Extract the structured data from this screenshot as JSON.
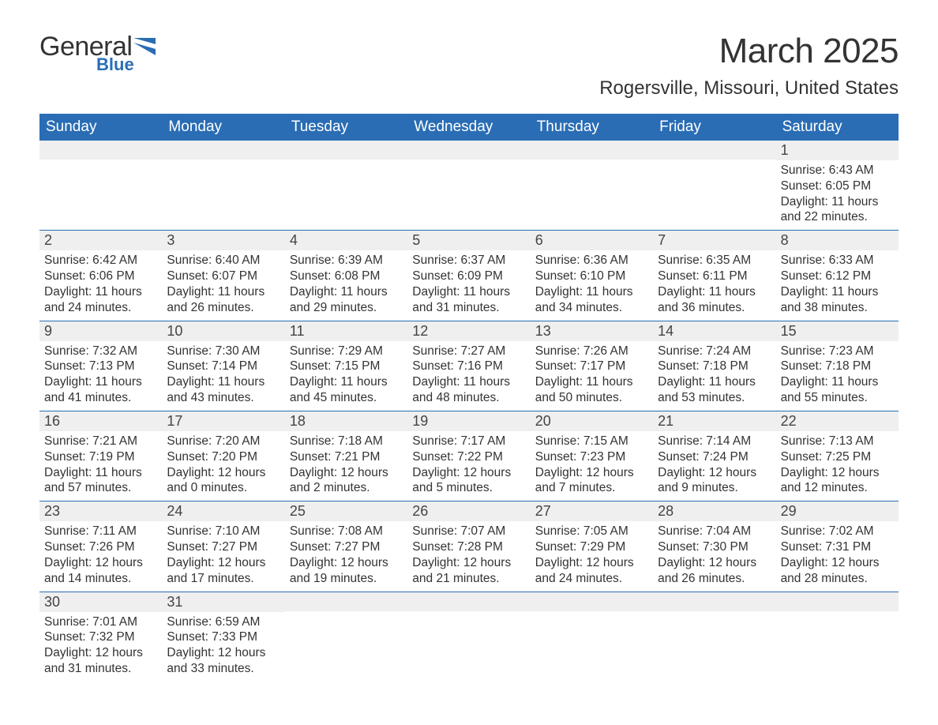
{
  "logo": {
    "main": "General",
    "sub": "Blue"
  },
  "title": "March 2025",
  "location": "Rogersville, Missouri, United States",
  "colors": {
    "header_bg": "#2a6db4",
    "header_text": "#ffffff",
    "strip_bg": "#efefef",
    "border": "#2a6db4",
    "text": "#333333"
  },
  "typography": {
    "title_fontsize": 44,
    "location_fontsize": 24,
    "dayheader_fontsize": 19,
    "daynum_fontsize": 18,
    "body_fontsize": 15.5
  },
  "layout": {
    "columns": 7,
    "rows": 6
  },
  "day_headers": [
    "Sunday",
    "Monday",
    "Tuesday",
    "Wednesday",
    "Thursday",
    "Friday",
    "Saturday"
  ],
  "weeks": [
    [
      {
        "num": "",
        "sunrise": "",
        "sunset": "",
        "daylight": ""
      },
      {
        "num": "",
        "sunrise": "",
        "sunset": "",
        "daylight": ""
      },
      {
        "num": "",
        "sunrise": "",
        "sunset": "",
        "daylight": ""
      },
      {
        "num": "",
        "sunrise": "",
        "sunset": "",
        "daylight": ""
      },
      {
        "num": "",
        "sunrise": "",
        "sunset": "",
        "daylight": ""
      },
      {
        "num": "",
        "sunrise": "",
        "sunset": "",
        "daylight": ""
      },
      {
        "num": "1",
        "sunrise": "Sunrise: 6:43 AM",
        "sunset": "Sunset: 6:05 PM",
        "daylight": "Daylight: 11 hours and 22 minutes."
      }
    ],
    [
      {
        "num": "2",
        "sunrise": "Sunrise: 6:42 AM",
        "sunset": "Sunset: 6:06 PM",
        "daylight": "Daylight: 11 hours and 24 minutes."
      },
      {
        "num": "3",
        "sunrise": "Sunrise: 6:40 AM",
        "sunset": "Sunset: 6:07 PM",
        "daylight": "Daylight: 11 hours and 26 minutes."
      },
      {
        "num": "4",
        "sunrise": "Sunrise: 6:39 AM",
        "sunset": "Sunset: 6:08 PM",
        "daylight": "Daylight: 11 hours and 29 minutes."
      },
      {
        "num": "5",
        "sunrise": "Sunrise: 6:37 AM",
        "sunset": "Sunset: 6:09 PM",
        "daylight": "Daylight: 11 hours and 31 minutes."
      },
      {
        "num": "6",
        "sunrise": "Sunrise: 6:36 AM",
        "sunset": "Sunset: 6:10 PM",
        "daylight": "Daylight: 11 hours and 34 minutes."
      },
      {
        "num": "7",
        "sunrise": "Sunrise: 6:35 AM",
        "sunset": "Sunset: 6:11 PM",
        "daylight": "Daylight: 11 hours and 36 minutes."
      },
      {
        "num": "8",
        "sunrise": "Sunrise: 6:33 AM",
        "sunset": "Sunset: 6:12 PM",
        "daylight": "Daylight: 11 hours and 38 minutes."
      }
    ],
    [
      {
        "num": "9",
        "sunrise": "Sunrise: 7:32 AM",
        "sunset": "Sunset: 7:13 PM",
        "daylight": "Daylight: 11 hours and 41 minutes."
      },
      {
        "num": "10",
        "sunrise": "Sunrise: 7:30 AM",
        "sunset": "Sunset: 7:14 PM",
        "daylight": "Daylight: 11 hours and 43 minutes."
      },
      {
        "num": "11",
        "sunrise": "Sunrise: 7:29 AM",
        "sunset": "Sunset: 7:15 PM",
        "daylight": "Daylight: 11 hours and 45 minutes."
      },
      {
        "num": "12",
        "sunrise": "Sunrise: 7:27 AM",
        "sunset": "Sunset: 7:16 PM",
        "daylight": "Daylight: 11 hours and 48 minutes."
      },
      {
        "num": "13",
        "sunrise": "Sunrise: 7:26 AM",
        "sunset": "Sunset: 7:17 PM",
        "daylight": "Daylight: 11 hours and 50 minutes."
      },
      {
        "num": "14",
        "sunrise": "Sunrise: 7:24 AM",
        "sunset": "Sunset: 7:18 PM",
        "daylight": "Daylight: 11 hours and 53 minutes."
      },
      {
        "num": "15",
        "sunrise": "Sunrise: 7:23 AM",
        "sunset": "Sunset: 7:18 PM",
        "daylight": "Daylight: 11 hours and 55 minutes."
      }
    ],
    [
      {
        "num": "16",
        "sunrise": "Sunrise: 7:21 AM",
        "sunset": "Sunset: 7:19 PM",
        "daylight": "Daylight: 11 hours and 57 minutes."
      },
      {
        "num": "17",
        "sunrise": "Sunrise: 7:20 AM",
        "sunset": "Sunset: 7:20 PM",
        "daylight": "Daylight: 12 hours and 0 minutes."
      },
      {
        "num": "18",
        "sunrise": "Sunrise: 7:18 AM",
        "sunset": "Sunset: 7:21 PM",
        "daylight": "Daylight: 12 hours and 2 minutes."
      },
      {
        "num": "19",
        "sunrise": "Sunrise: 7:17 AM",
        "sunset": "Sunset: 7:22 PM",
        "daylight": "Daylight: 12 hours and 5 minutes."
      },
      {
        "num": "20",
        "sunrise": "Sunrise: 7:15 AM",
        "sunset": "Sunset: 7:23 PM",
        "daylight": "Daylight: 12 hours and 7 minutes."
      },
      {
        "num": "21",
        "sunrise": "Sunrise: 7:14 AM",
        "sunset": "Sunset: 7:24 PM",
        "daylight": "Daylight: 12 hours and 9 minutes."
      },
      {
        "num": "22",
        "sunrise": "Sunrise: 7:13 AM",
        "sunset": "Sunset: 7:25 PM",
        "daylight": "Daylight: 12 hours and 12 minutes."
      }
    ],
    [
      {
        "num": "23",
        "sunrise": "Sunrise: 7:11 AM",
        "sunset": "Sunset: 7:26 PM",
        "daylight": "Daylight: 12 hours and 14 minutes."
      },
      {
        "num": "24",
        "sunrise": "Sunrise: 7:10 AM",
        "sunset": "Sunset: 7:27 PM",
        "daylight": "Daylight: 12 hours and 17 minutes."
      },
      {
        "num": "25",
        "sunrise": "Sunrise: 7:08 AM",
        "sunset": "Sunset: 7:27 PM",
        "daylight": "Daylight: 12 hours and 19 minutes."
      },
      {
        "num": "26",
        "sunrise": "Sunrise: 7:07 AM",
        "sunset": "Sunset: 7:28 PM",
        "daylight": "Daylight: 12 hours and 21 minutes."
      },
      {
        "num": "27",
        "sunrise": "Sunrise: 7:05 AM",
        "sunset": "Sunset: 7:29 PM",
        "daylight": "Daylight: 12 hours and 24 minutes."
      },
      {
        "num": "28",
        "sunrise": "Sunrise: 7:04 AM",
        "sunset": "Sunset: 7:30 PM",
        "daylight": "Daylight: 12 hours and 26 minutes."
      },
      {
        "num": "29",
        "sunrise": "Sunrise: 7:02 AM",
        "sunset": "Sunset: 7:31 PM",
        "daylight": "Daylight: 12 hours and 28 minutes."
      }
    ],
    [
      {
        "num": "30",
        "sunrise": "Sunrise: 7:01 AM",
        "sunset": "Sunset: 7:32 PM",
        "daylight": "Daylight: 12 hours and 31 minutes."
      },
      {
        "num": "31",
        "sunrise": "Sunrise: 6:59 AM",
        "sunset": "Sunset: 7:33 PM",
        "daylight": "Daylight: 12 hours and 33 minutes."
      },
      {
        "num": "",
        "sunrise": "",
        "sunset": "",
        "daylight": ""
      },
      {
        "num": "",
        "sunrise": "",
        "sunset": "",
        "daylight": ""
      },
      {
        "num": "",
        "sunrise": "",
        "sunset": "",
        "daylight": ""
      },
      {
        "num": "",
        "sunrise": "",
        "sunset": "",
        "daylight": ""
      },
      {
        "num": "",
        "sunrise": "",
        "sunset": "",
        "daylight": ""
      }
    ]
  ]
}
